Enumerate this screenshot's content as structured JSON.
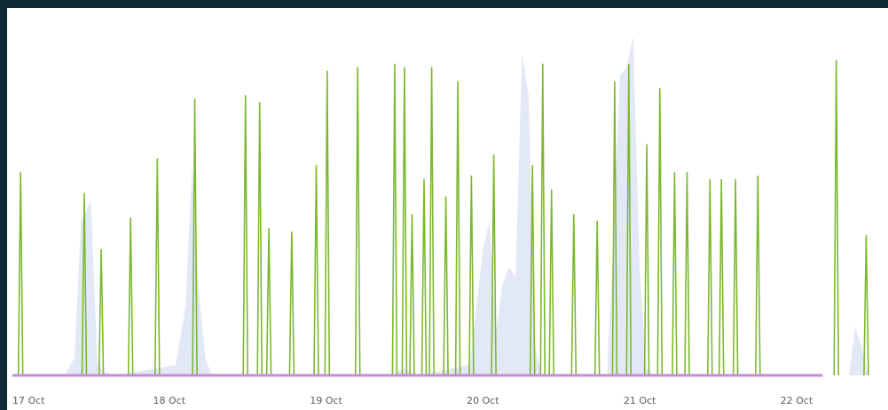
{
  "colors": {
    "frame": "#0e2a36",
    "background": "#ffffff",
    "spike": "#7cb82f",
    "area": "#e2e8f5",
    "baseline": "#c58ad8",
    "tick_text": "#55606a"
  },
  "chart_data": {
    "type": "line",
    "title": "",
    "xlabel": "",
    "ylabel": "",
    "x_axis": {
      "type": "date",
      "range": [
        "2023-10-17T00:00",
        "2023-10-22T14:00"
      ],
      "ticks": [
        {
          "date": "2023-10-17T00:00",
          "label": "17 Oct"
        },
        {
          "date": "2023-10-18T00:00",
          "label": "18 Oct"
        },
        {
          "date": "2023-10-19T00:00",
          "label": "19 Oct"
        },
        {
          "date": "2023-10-20T00:00",
          "label": "20 Oct"
        },
        {
          "date": "2023-10-21T00:00",
          "label": "21 Oct"
        },
        {
          "date": "2023-10-22T00:00",
          "label": "22 Oct"
        }
      ]
    },
    "y_axis": {
      "range": [
        0,
        100
      ],
      "tick_labels_shown": false
    },
    "grid": false,
    "legend": "none",
    "series": [
      {
        "type": "line",
        "color": "#7cb82f",
        "points": [
          {
            "x": "2023-10-17T01:15",
            "y": 58
          },
          {
            "x": "2023-10-17T11:00",
            "y": 52
          },
          {
            "x": "2023-10-17T13:35",
            "y": 36
          },
          {
            "x": "2023-10-17T18:05",
            "y": 45
          },
          {
            "x": "2023-10-17T22:10",
            "y": 62
          },
          {
            "x": "2023-10-18T03:55",
            "y": 79
          },
          {
            "x": "2023-10-18T11:40",
            "y": 80
          },
          {
            "x": "2023-10-18T13:50",
            "y": 78
          },
          {
            "x": "2023-10-18T15:15",
            "y": 42
          },
          {
            "x": "2023-10-18T18:45",
            "y": 41
          },
          {
            "x": "2023-10-18T22:30",
            "y": 60
          },
          {
            "x": "2023-10-19T00:10",
            "y": 87
          },
          {
            "x": "2023-10-19T04:50",
            "y": 88
          },
          {
            "x": "2023-10-19T10:30",
            "y": 89
          },
          {
            "x": "2023-10-19T12:00",
            "y": 88
          },
          {
            "x": "2023-10-19T13:10",
            "y": 46
          },
          {
            "x": "2023-10-19T15:00",
            "y": 56
          },
          {
            "x": "2023-10-19T16:10",
            "y": 88
          },
          {
            "x": "2023-10-19T18:20",
            "y": 51
          },
          {
            "x": "2023-10-19T20:10",
            "y": 84
          },
          {
            "x": "2023-10-19T22:15",
            "y": 57
          },
          {
            "x": "2023-10-20T01:40",
            "y": 63
          },
          {
            "x": "2023-10-20T07:35",
            "y": 60
          },
          {
            "x": "2023-10-20T09:10",
            "y": 89
          },
          {
            "x": "2023-10-20T10:30",
            "y": 53
          },
          {
            "x": "2023-10-20T13:55",
            "y": 46
          },
          {
            "x": "2023-10-20T17:30",
            "y": 44
          },
          {
            "x": "2023-10-20T20:10",
            "y": 84
          },
          {
            "x": "2023-10-20T22:20",
            "y": 89
          },
          {
            "x": "2023-10-21T01:05",
            "y": 66
          },
          {
            "x": "2023-10-21T03:05",
            "y": 82
          },
          {
            "x": "2023-10-21T05:20",
            "y": 58
          },
          {
            "x": "2023-10-21T07:15",
            "y": 58
          },
          {
            "x": "2023-10-21T10:45",
            "y": 56
          },
          {
            "x": "2023-10-21T12:30",
            "y": 56
          },
          {
            "x": "2023-10-21T14:40",
            "y": 56
          },
          {
            "x": "2023-10-21T18:05",
            "y": 57
          },
          {
            "x": "2023-10-22T06:05",
            "y": 90
          },
          {
            "x": "2023-10-22T10:40",
            "y": 40
          }
        ]
      },
      {
        "type": "area",
        "color": "#e2e8f5",
        "points": [
          {
            "x": "2023-10-17T08:00",
            "y": 0
          },
          {
            "x": "2023-10-17T09:30",
            "y": 5
          },
          {
            "x": "2023-10-17T10:30",
            "y": 44
          },
          {
            "x": "2023-10-17T12:00",
            "y": 50
          },
          {
            "x": "2023-10-17T13:00",
            "y": 4
          },
          {
            "x": "2023-10-17T14:00",
            "y": 1
          },
          {
            "x": "2023-10-17T16:00",
            "y": 0
          },
          {
            "x": "2023-10-18T01:00",
            "y": 3
          },
          {
            "x": "2023-10-18T02:30",
            "y": 20
          },
          {
            "x": "2023-10-18T03:30",
            "y": 60
          },
          {
            "x": "2023-10-18T04:30",
            "y": 25
          },
          {
            "x": "2023-10-18T05:30",
            "y": 5
          },
          {
            "x": "2023-10-18T06:30",
            "y": 0
          },
          {
            "x": "2023-10-19T10:00",
            "y": 0
          },
          {
            "x": "2023-10-19T12:00",
            "y": 2
          },
          {
            "x": "2023-10-19T14:00",
            "y": 0
          },
          {
            "x": "2023-10-19T22:00",
            "y": 3
          },
          {
            "x": "2023-10-20T00:00",
            "y": 36
          },
          {
            "x": "2023-10-20T01:00",
            "y": 44
          },
          {
            "x": "2023-10-20T02:00",
            "y": 12
          },
          {
            "x": "2023-10-20T03:00",
            "y": 26
          },
          {
            "x": "2023-10-20T04:00",
            "y": 31
          },
          {
            "x": "2023-10-20T05:00",
            "y": 28
          },
          {
            "x": "2023-10-20T06:00",
            "y": 92
          },
          {
            "x": "2023-10-20T07:00",
            "y": 80
          },
          {
            "x": "2023-10-20T08:00",
            "y": 8
          },
          {
            "x": "2023-10-20T09:00",
            "y": 0
          },
          {
            "x": "2023-10-20T19:00",
            "y": 0
          },
          {
            "x": "2023-10-20T20:00",
            "y": 40
          },
          {
            "x": "2023-10-20T21:00",
            "y": 86
          },
          {
            "x": "2023-10-20T22:00",
            "y": 88
          },
          {
            "x": "2023-10-20T23:00",
            "y": 97
          },
          {
            "x": "2023-10-21T00:00",
            "y": 30
          },
          {
            "x": "2023-10-21T01:00",
            "y": 2
          },
          {
            "x": "2023-10-21T02:00",
            "y": 0
          },
          {
            "x": "2023-10-22T08:00",
            "y": 0
          },
          {
            "x": "2023-10-22T09:00",
            "y": 14
          },
          {
            "x": "2023-10-22T10:00",
            "y": 8
          },
          {
            "x": "2023-10-22T11:00",
            "y": 0
          }
        ]
      },
      {
        "type": "line",
        "color": "#c58ad8",
        "points": [
          {
            "x": "2023-10-17T00:00",
            "y": 0
          },
          {
            "x": "2023-10-22T04:00",
            "y": 0
          }
        ]
      }
    ]
  }
}
